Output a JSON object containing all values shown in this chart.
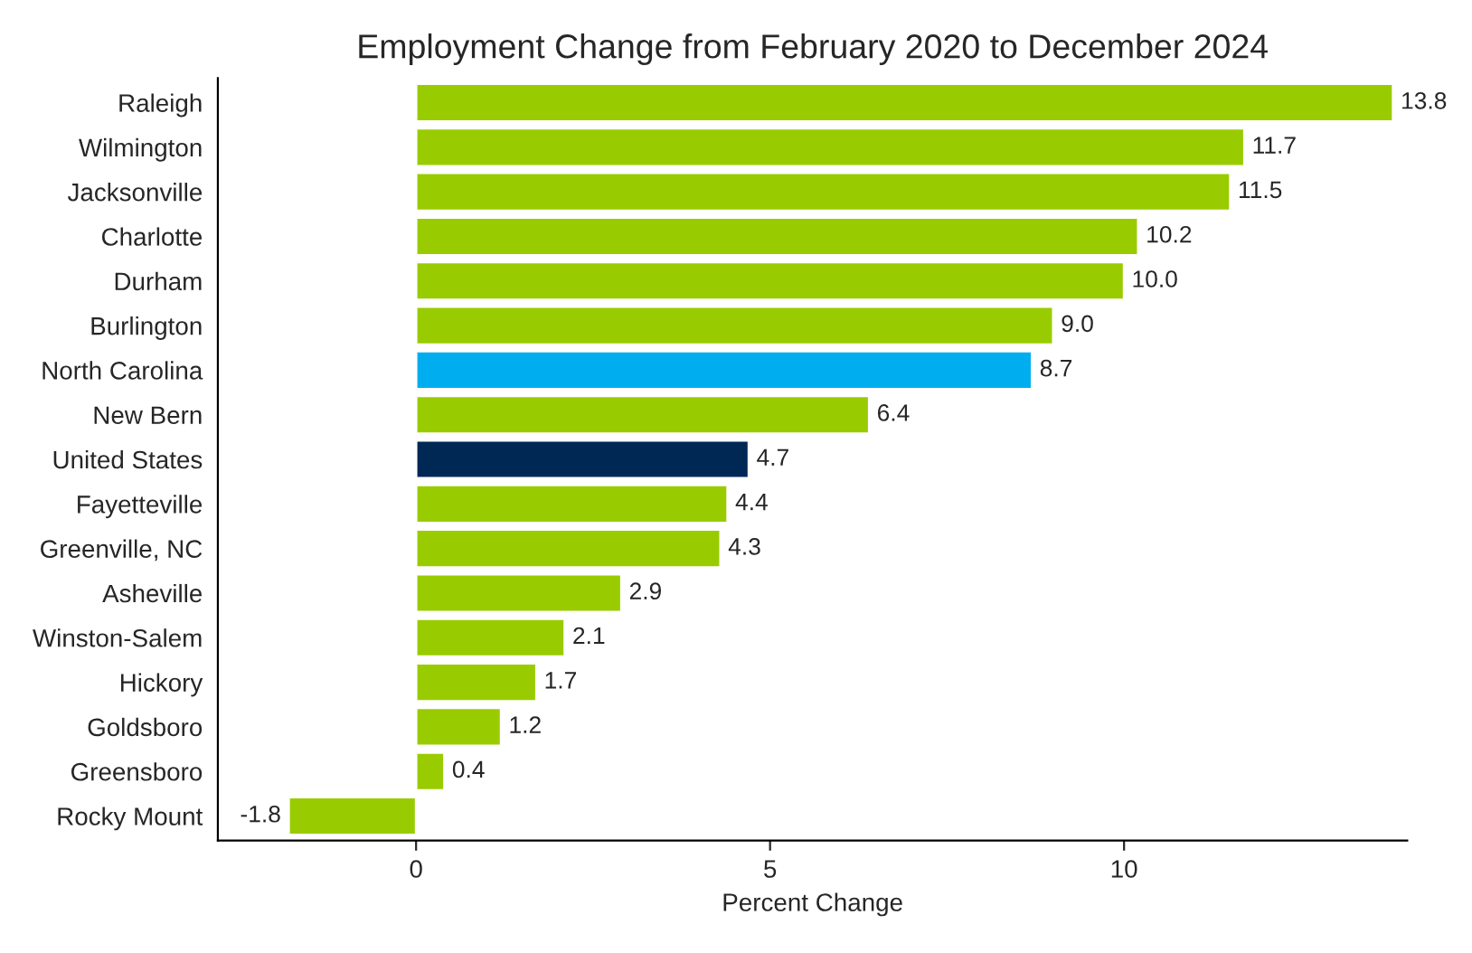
{
  "chart_data": {
    "type": "bar",
    "orientation": "horizontal",
    "title": "Employment Change from February 2020 to December 2024",
    "xlabel": "Percent Change",
    "categories": [
      "Raleigh",
      "Wilmington",
      "Jacksonville",
      "Charlotte",
      "Durham",
      "Burlington",
      "North Carolina",
      "New Bern",
      "United States",
      "Fayetteville",
      "Greenville, NC",
      "Asheville",
      "Winston-Salem",
      "Hickory",
      "Goldsboro",
      "Greensboro",
      "Rocky Mount"
    ],
    "values": [
      13.8,
      11.7,
      11.5,
      10.2,
      10.0,
      9.0,
      8.7,
      6.4,
      4.7,
      4.4,
      4.3,
      2.9,
      2.1,
      1.7,
      1.2,
      0.4,
      -1.8
    ],
    "value_labels": [
      "13.8",
      "11.7",
      "11.5",
      "10.2",
      "10.0",
      "9.0",
      "8.7",
      "6.4",
      "4.7",
      "4.4",
      "4.3",
      "2.9",
      "2.1",
      "1.7",
      "1.2",
      "0.4",
      "-1.8"
    ],
    "colors": [
      "#99cc00",
      "#99cc00",
      "#99cc00",
      "#99cc00",
      "#99cc00",
      "#99cc00",
      "#00aeef",
      "#99cc00",
      "#002855",
      "#99cc00",
      "#99cc00",
      "#99cc00",
      "#99cc00",
      "#99cc00",
      "#99cc00",
      "#99cc00",
      "#99cc00"
    ],
    "xlim": [
      -2.8,
      14.0
    ],
    "xticks": [
      0,
      5,
      10
    ],
    "grid": false,
    "legend": false
  }
}
